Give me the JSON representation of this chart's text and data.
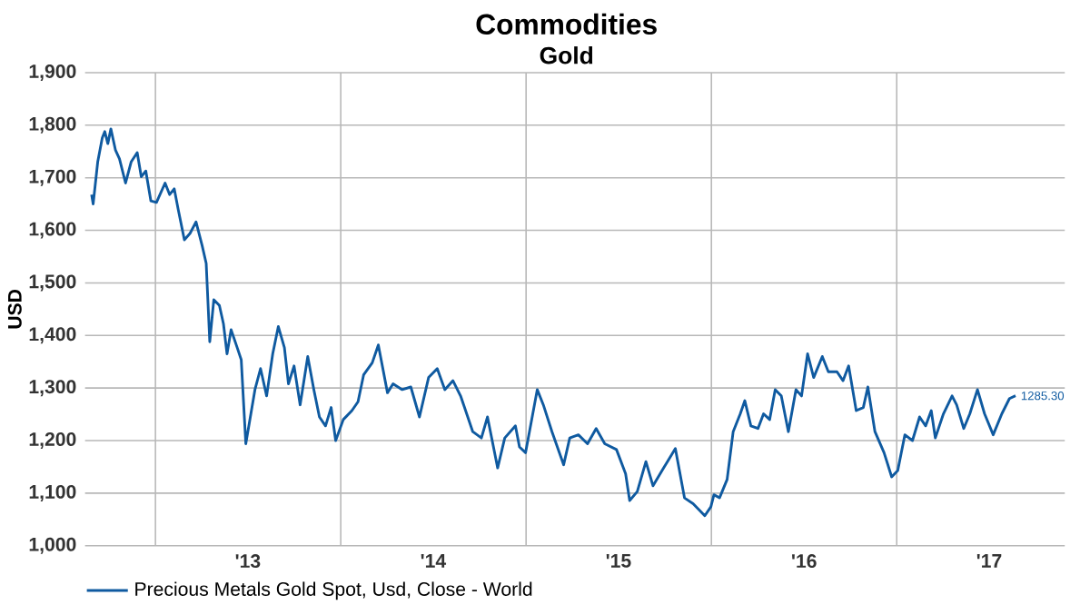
{
  "chart_data": {
    "type": "line",
    "title": "Commodities",
    "subtitle": "Gold",
    "ylabel": "USD",
    "xlim": [
      "2012-08-15",
      "2017-11-28"
    ],
    "xticks": [
      {
        "value": "2013-01-01",
        "label": null
      },
      {
        "value": "2013-07-02",
        "label": "'13"
      },
      {
        "value": "2014-01-01",
        "label": null
      },
      {
        "value": "2014-07-02",
        "label": "'14"
      },
      {
        "value": "2015-01-01",
        "label": null
      },
      {
        "value": "2015-07-02",
        "label": "'15"
      },
      {
        "value": "2016-01-01",
        "label": null
      },
      {
        "value": "2016-07-02",
        "label": "'16"
      },
      {
        "value": "2017-01-01",
        "label": null
      },
      {
        "value": "2017-07-02",
        "label": "'17"
      }
    ],
    "ylim": [
      1000,
      1900
    ],
    "yticks": [
      {
        "value": 1000,
        "label": "1,000"
      },
      {
        "value": 1100,
        "label": "1,100"
      },
      {
        "value": 1200,
        "label": "1,200"
      },
      {
        "value": 1300,
        "label": "1,300"
      },
      {
        "value": 1400,
        "label": "1,400"
      },
      {
        "value": 1500,
        "label": "1,500"
      },
      {
        "value": 1600,
        "label": "1,600"
      },
      {
        "value": 1700,
        "label": "1,700"
      },
      {
        "value": 1800,
        "label": "1,800"
      },
      {
        "value": 1900,
        "label": "1,900"
      }
    ],
    "grid": true,
    "legend": "bottom left",
    "marker": "none",
    "line_style": "solid",
    "annotations": [
      {
        "text": "1285.30",
        "x": "2017-08-23",
        "y": 1285.3
      }
    ],
    "x": [
      "2012-08-28",
      "2012-08-31",
      "2012-09-09",
      "2012-09-18",
      "2012-09-23",
      "2012-09-29",
      "2012-10-05",
      "2012-10-14",
      "2012-10-22",
      "2012-11-03",
      "2012-11-14",
      "2012-11-26",
      "2012-12-04",
      "2012-12-13",
      "2012-12-23",
      "2013-01-03",
      "2013-01-20",
      "2013-01-29",
      "2013-02-07",
      "2013-02-15",
      "2013-02-27",
      "2013-03-10",
      "2013-03-22",
      "2013-04-03",
      "2013-04-11",
      "2013-04-18",
      "2013-04-26",
      "2013-05-07",
      "2013-05-15",
      "2013-05-22",
      "2013-05-30",
      "2013-06-11",
      "2013-06-19",
      "2013-06-28",
      "2013-07-08",
      "2013-07-16",
      "2013-07-27",
      "2013-08-08",
      "2013-08-20",
      "2013-08-31",
      "2013-09-12",
      "2013-09-20",
      "2013-10-01",
      "2013-10-13",
      "2013-10-28",
      "2013-11-09",
      "2013-11-20",
      "2013-12-02",
      "2013-12-13",
      "2013-12-22",
      "2014-01-06",
      "2014-01-23",
      "2014-02-04",
      "2014-02-15",
      "2014-03-04",
      "2014-03-16",
      "2014-04-03",
      "2014-04-14",
      "2014-05-02",
      "2014-05-19",
      "2014-06-05",
      "2014-06-23",
      "2014-07-10",
      "2014-07-25",
      "2014-08-10",
      "2014-08-25",
      "2014-09-18",
      "2014-10-05",
      "2014-10-17",
      "2014-11-06",
      "2014-11-20",
      "2014-12-11",
      "2014-12-19",
      "2014-12-31",
      "2015-01-23",
      "2015-02-04",
      "2015-02-21",
      "2015-03-16",
      "2015-03-28",
      "2015-04-14",
      "2015-05-02",
      "2015-05-19",
      "2015-06-05",
      "2015-06-28",
      "2015-07-16",
      "2015-07-24",
      "2015-08-08",
      "2015-08-25",
      "2015-09-08",
      "2015-09-29",
      "2015-10-22",
      "2015-11-09",
      "2015-11-26",
      "2015-12-19",
      "2015-12-31",
      "2016-01-06",
      "2016-01-17",
      "2016-02-01",
      "2016-02-13",
      "2016-02-27",
      "2016-03-07",
      "2016-03-19",
      "2016-04-02",
      "2016-04-13",
      "2016-04-25",
      "2016-05-06",
      "2016-05-18",
      "2016-06-01",
      "2016-06-16",
      "2016-06-27",
      "2016-07-09",
      "2016-07-21",
      "2016-08-07",
      "2016-08-19",
      "2016-09-05",
      "2016-09-17",
      "2016-09-28",
      "2016-10-13",
      "2016-10-27",
      "2016-11-05",
      "2016-11-19",
      "2016-12-07",
      "2016-12-22",
      "2017-01-03",
      "2017-01-17",
      "2017-02-01",
      "2017-02-15",
      "2017-02-27",
      "2017-03-10",
      "2017-03-18",
      "2017-04-03",
      "2017-04-20",
      "2017-04-29",
      "2017-05-13",
      "2017-05-25",
      "2017-06-09",
      "2017-06-23",
      "2017-07-10",
      "2017-07-27",
      "2017-08-11",
      "2017-08-23"
    ],
    "series": [
      {
        "name": "Precious Metals Gold Spot, Usd, Close - World",
        "color": "#0f5aa0",
        "values": [
          1668,
          1650,
          1730,
          1776,
          1788,
          1765,
          1793,
          1753,
          1736,
          1690,
          1730,
          1748,
          1702,
          1713,
          1656,
          1653,
          1690,
          1668,
          1679,
          1639,
          1582,
          1594,
          1616,
          1571,
          1537,
          1388,
          1468,
          1457,
          1422,
          1365,
          1411,
          1377,
          1354,
          1194,
          1251,
          1297,
          1337,
          1285,
          1365,
          1417,
          1377,
          1308,
          1342,
          1268,
          1360,
          1297,
          1245,
          1228,
          1263,
          1200,
          1240,
          1257,
          1274,
          1325,
          1348,
          1382,
          1291,
          1308,
          1297,
          1302,
          1245,
          1320,
          1337,
          1297,
          1314,
          1285,
          1217,
          1205,
          1245,
          1148,
          1205,
          1228,
          1188,
          1177,
          1297,
          1268,
          1217,
          1154,
          1205,
          1211,
          1194,
          1223,
          1194,
          1183,
          1137,
          1086,
          1103,
          1160,
          1114,
          1148,
          1185,
          1091,
          1080,
          1057,
          1074,
          1097,
          1091,
          1126,
          1217,
          1251,
          1276,
          1228,
          1223,
          1251,
          1240,
          1297,
          1285,
          1217,
          1297,
          1285,
          1365,
          1320,
          1360,
          1331,
          1331,
          1314,
          1342,
          1257,
          1263,
          1302,
          1217,
          1177,
          1131,
          1143,
          1211,
          1200,
          1245,
          1228,
          1257,
          1205,
          1251,
          1285,
          1268,
          1223,
          1251,
          1297,
          1251,
          1211,
          1251,
          1280,
          1285.3
        ]
      }
    ]
  }
}
